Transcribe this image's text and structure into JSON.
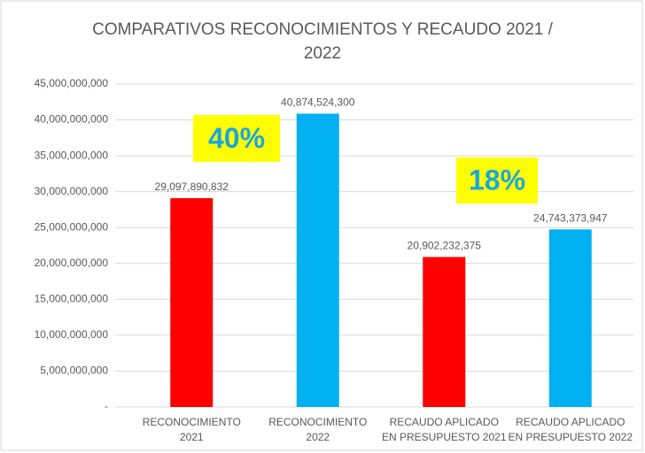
{
  "chart_data": {
    "type": "bar",
    "title": "COMPARATIVOS RECONOCIMIENTOS Y RECAUDO 2021 / 2022",
    "categories": [
      [
        "RECONOCIMIENTO",
        "2021"
      ],
      [
        "RECONOCIMIENTO",
        "2022"
      ],
      [
        "RECAUDO APLICADO",
        "EN PRESUPUESTO 2021"
      ],
      [
        "RECAUDO APLICADO",
        "EN PRESUPUESTO 2022"
      ]
    ],
    "values": [
      29097890832,
      40874524300,
      20902232375,
      24743373947
    ],
    "value_labels": [
      "29,097,890,832",
      "40,874,524,300",
      "20,902,232,375",
      "24,743,373,947"
    ],
    "colors": [
      "#ff0000",
      "#00b0f0",
      "#ff0000",
      "#00b0f0"
    ],
    "annotations": [
      "40%",
      "18%"
    ],
    "ylim": [
      0,
      45000000000
    ],
    "yticks": [
      {
        "value": 0,
        "label": "-"
      },
      {
        "value": 5000000000,
        "label": "5,000,000,000"
      },
      {
        "value": 10000000000,
        "label": "10,000,000,000"
      },
      {
        "value": 15000000000,
        "label": "15,000,000,000"
      },
      {
        "value": 20000000000,
        "label": "20,000,000,000"
      },
      {
        "value": 25000000000,
        "label": "25,000,000,000"
      },
      {
        "value": 30000000000,
        "label": "30,000,000,000"
      },
      {
        "value": 35000000000,
        "label": "35,000,000,000"
      },
      {
        "value": 40000000000,
        "label": "40,000,000,000"
      },
      {
        "value": 45000000000,
        "label": "45,000,000,000"
      }
    ],
    "grid": true
  }
}
